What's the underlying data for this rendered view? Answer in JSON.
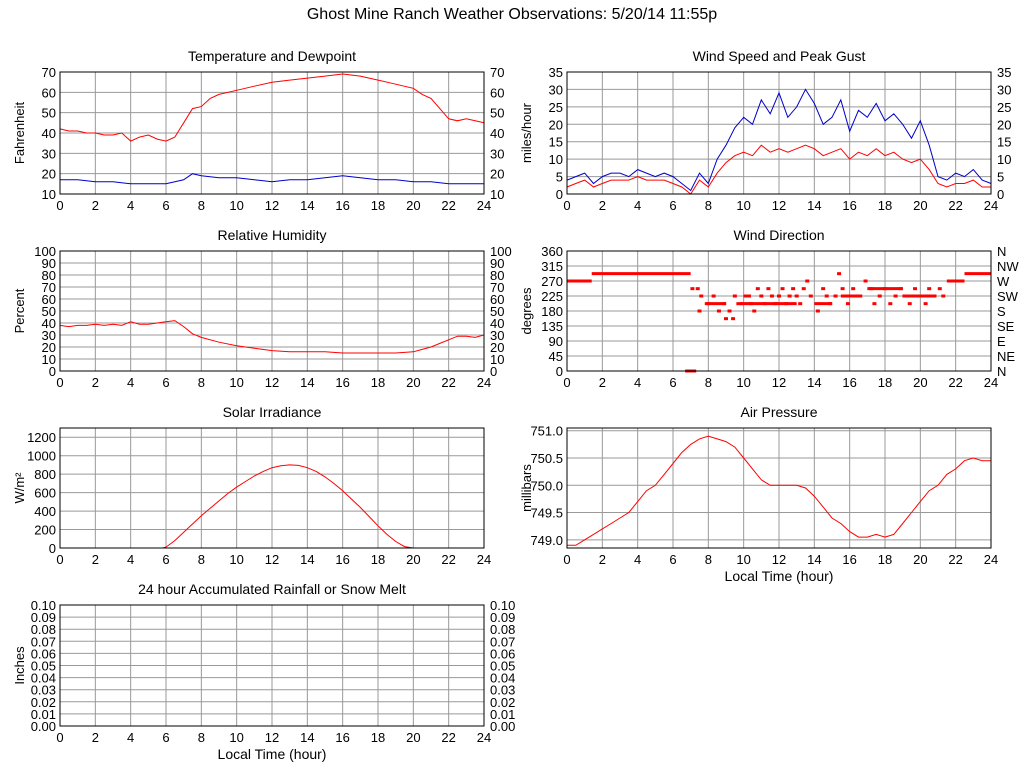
{
  "page": {
    "title": "Ghost Mine Ranch Weather Observations: 5/20/14 11:55p"
  },
  "colors": {
    "red": "#ff0000",
    "blue": "#0000cc",
    "grid": "#999999",
    "frame": "#000000"
  },
  "chart_data": [
    {
      "id": "temp",
      "type": "line",
      "title": "Temperature and Dewpoint",
      "ylabel": "Fahrenheit",
      "xlabel": "",
      "xlim": [
        0,
        24
      ],
      "ylim": [
        10,
        70
      ],
      "yticks": [
        10,
        20,
        30,
        40,
        50,
        60,
        70
      ],
      "ytick_labels": [
        "10",
        "20",
        "30",
        "40",
        "50",
        "60",
        "70"
      ],
      "right_ticks": [
        "10",
        "20",
        "30",
        "40",
        "50",
        "60",
        "70"
      ],
      "xticks": [
        0,
        2,
        4,
        6,
        8,
        10,
        12,
        14,
        16,
        18,
        20,
        22,
        24
      ],
      "grid": true,
      "series": [
        {
          "color": "#ff0000",
          "x": [
            0,
            0.5,
            1,
            1.5,
            2,
            2.5,
            3,
            3.5,
            4,
            4.5,
            5,
            5.5,
            6,
            6.5,
            7,
            7.5,
            8,
            8.5,
            9,
            10,
            11,
            12,
            13,
            14,
            15,
            16,
            17,
            18,
            19,
            20,
            20.5,
            21,
            21.5,
            22,
            22.5,
            23,
            23.5,
            24
          ],
          "y": [
            42,
            41,
            41,
            40,
            40,
            39,
            39,
            40,
            36,
            38,
            39,
            37,
            36,
            38,
            45,
            52,
            53,
            57,
            59,
            61,
            63,
            65,
            66,
            67,
            68,
            69,
            68,
            66,
            64,
            62,
            59,
            57,
            52,
            47,
            46,
            47,
            46,
            45
          ]
        },
        {
          "color": "#0000cc",
          "x": [
            0,
            1,
            2,
            3,
            4,
            5,
            6,
            7,
            7.5,
            8,
            9,
            10,
            11,
            12,
            13,
            14,
            15,
            16,
            17,
            18,
            19,
            20,
            21,
            22,
            23,
            24
          ],
          "y": [
            17,
            17,
            16,
            16,
            15,
            15,
            15,
            17,
            20,
            19,
            18,
            18,
            17,
            16,
            17,
            17,
            18,
            19,
            18,
            17,
            17,
            16,
            16,
            15,
            15,
            15
          ]
        }
      ]
    },
    {
      "id": "wind",
      "type": "line",
      "title": "Wind Speed and Peak Gust",
      "ylabel": "miles/hour",
      "xlabel": "",
      "xlim": [
        0,
        24
      ],
      "ylim": [
        0,
        35
      ],
      "yticks": [
        0,
        5,
        10,
        15,
        20,
        25,
        30,
        35
      ],
      "ytick_labels": [
        "0",
        "5",
        "10",
        "15",
        "20",
        "25",
        "30",
        "35"
      ],
      "right_ticks": [
        "0",
        "5",
        "10",
        "15",
        "20",
        "25",
        "30",
        "35"
      ],
      "xticks": [
        0,
        2,
        4,
        6,
        8,
        10,
        12,
        14,
        16,
        18,
        20,
        22,
        24
      ],
      "grid": true,
      "series": [
        {
          "color": "#0000cc",
          "x": [
            0,
            0.5,
            1,
            1.5,
            2,
            2.5,
            3,
            3.5,
            4,
            4.5,
            5,
            5.5,
            6,
            6.5,
            7,
            7.5,
            8,
            8.5,
            9,
            9.5,
            10,
            10.5,
            11,
            11.5,
            12,
            12.5,
            13,
            13.5,
            14,
            14.5,
            15,
            15.5,
            16,
            16.5,
            17,
            17.5,
            18,
            18.5,
            19,
            19.5,
            20,
            20.5,
            21,
            21.5,
            22,
            22.5,
            23,
            23.5,
            24
          ],
          "y": [
            4,
            5,
            6,
            3,
            5,
            6,
            6,
            5,
            7,
            6,
            5,
            6,
            5,
            3,
            1,
            6,
            3,
            10,
            14,
            19,
            22,
            20,
            27,
            23,
            29,
            22,
            25,
            30,
            26,
            20,
            22,
            27,
            18,
            24,
            22,
            26,
            21,
            23,
            20,
            16,
            21,
            14,
            5,
            4,
            6,
            5,
            7,
            4,
            3
          ]
        },
        {
          "color": "#ff0000",
          "x": [
            0,
            0.5,
            1,
            1.5,
            2,
            2.5,
            3,
            3.5,
            4,
            4.5,
            5,
            5.5,
            6,
            6.5,
            7,
            7.5,
            8,
            8.5,
            9,
            9.5,
            10,
            10.5,
            11,
            11.5,
            12,
            12.5,
            13,
            13.5,
            14,
            14.5,
            15,
            15.5,
            16,
            16.5,
            17,
            17.5,
            18,
            18.5,
            19,
            19.5,
            20,
            20.5,
            21,
            21.5,
            22,
            22.5,
            23,
            23.5,
            24
          ],
          "y": [
            2,
            3,
            4,
            2,
            3,
            4,
            4,
            4,
            5,
            4,
            4,
            4,
            3,
            2,
            0,
            4,
            2,
            6,
            9,
            11,
            12,
            11,
            14,
            12,
            13,
            12,
            13,
            14,
            13,
            11,
            12,
            13,
            10,
            12,
            11,
            13,
            11,
            12,
            10,
            9,
            10,
            7,
            3,
            2,
            3,
            3,
            4,
            2,
            2
          ]
        }
      ]
    },
    {
      "id": "rh",
      "type": "line",
      "title": "Relative Humidity",
      "ylabel": "Percent",
      "xlabel": "",
      "xlim": [
        0,
        24
      ],
      "ylim": [
        0,
        100
      ],
      "yticks": [
        0,
        10,
        20,
        30,
        40,
        50,
        60,
        70,
        80,
        90,
        100
      ],
      "ytick_labels": [
        "0",
        "10",
        "20",
        "30",
        "40",
        "50",
        "60",
        "70",
        "80",
        "90",
        "100"
      ],
      "right_ticks": [
        "0",
        "10",
        "20",
        "30",
        "40",
        "50",
        "60",
        "70",
        "80",
        "90",
        "100"
      ],
      "xticks": [
        0,
        2,
        4,
        6,
        8,
        10,
        12,
        14,
        16,
        18,
        20,
        22,
        24
      ],
      "grid": true,
      "series": [
        {
          "color": "#ff0000",
          "x": [
            0,
            0.5,
            1,
            1.5,
            2,
            2.5,
            3,
            3.5,
            4,
            4.5,
            5,
            5.5,
            6,
            6.5,
            7,
            7.5,
            8,
            9,
            10,
            11,
            12,
            13,
            14,
            15,
            16,
            17,
            18,
            19,
            20,
            20.5,
            21,
            21.5,
            22,
            22.5,
            23,
            23.5,
            24
          ],
          "y": [
            38,
            37,
            38,
            38,
            39,
            38,
            39,
            38,
            41,
            39,
            39,
            40,
            41,
            42,
            37,
            31,
            28,
            24,
            21,
            19,
            17,
            16,
            16,
            16,
            15,
            15,
            15,
            15,
            16,
            18,
            20,
            23,
            26,
            29,
            29,
            28,
            30
          ]
        }
      ]
    },
    {
      "id": "winddir",
      "type": "scatter",
      "title": "Wind Direction",
      "ylabel": "degrees",
      "xlabel": "",
      "xlim": [
        0,
        24
      ],
      "ylim": [
        0,
        360
      ],
      "yticks": [
        0,
        45,
        90,
        135,
        180,
        225,
        270,
        315,
        360
      ],
      "ytick_labels": [
        "0",
        "45",
        "90",
        "135",
        "180",
        "225",
        "270",
        "315",
        "360"
      ],
      "right_ticks": [
        "N",
        "NE",
        "E",
        "SE",
        "S",
        "SW",
        "W",
        "NW",
        "N"
      ],
      "xticks": [
        0,
        2,
        4,
        6,
        8,
        10,
        12,
        14,
        16,
        18,
        20,
        22,
        24
      ],
      "grid": true,
      "segments": [
        {
          "x0": 0,
          "x1": 1.4,
          "y": 270
        },
        {
          "x0": 1.4,
          "x1": 7.0,
          "y": 292
        },
        {
          "x0": 7.8,
          "x1": 9.0,
          "y": 202
        },
        {
          "x0": 9.8,
          "x1": 13.0,
          "y": 202
        },
        {
          "x0": 14.0,
          "x1": 15.0,
          "y": 202
        },
        {
          "x0": 15.5,
          "x1": 16.5,
          "y": 225
        },
        {
          "x0": 17.0,
          "x1": 19.0,
          "y": 247
        },
        {
          "x0": 19.2,
          "x1": 20.8,
          "y": 225
        },
        {
          "x0": 21.5,
          "x1": 22.5,
          "y": 270
        },
        {
          "x0": 22.5,
          "x1": 24.0,
          "y": 292
        }
      ],
      "points": {
        "x": [
          6.8,
          7.0,
          7.2,
          7.1,
          7.4,
          7.6,
          7.5,
          8.0,
          8.3,
          8.6,
          8.9,
          9.0,
          9.2,
          9.4,
          9.5,
          9.7,
          9.9,
          10.1,
          10.3,
          10.4,
          10.6,
          10.8,
          11.0,
          11.2,
          11.4,
          11.6,
          11.8,
          12.0,
          12.2,
          12.4,
          12.6,
          12.8,
          13.0,
          13.2,
          13.4,
          13.6,
          13.8,
          14.2,
          14.5,
          14.7,
          14.9,
          15.2,
          15.4,
          15.6,
          15.9,
          16.2,
          16.6,
          16.9,
          17.2,
          17.4,
          17.7,
          18.0,
          18.3,
          18.6,
          18.9,
          19.1,
          19.4,
          19.7,
          20.0,
          20.3,
          20.5,
          20.8,
          21.1,
          21.3
        ],
        "y": [
          0,
          0,
          0,
          247,
          247,
          225,
          180,
          202,
          225,
          180,
          202,
          157,
          180,
          157,
          225,
          202,
          202,
          225,
          225,
          202,
          180,
          247,
          225,
          202,
          247,
          225,
          202,
          225,
          247,
          202,
          225,
          247,
          225,
          202,
          247,
          270,
          225,
          180,
          247,
          225,
          202,
          225,
          292,
          247,
          202,
          247,
          225,
          270,
          247,
          202,
          225,
          247,
          202,
          225,
          247,
          225,
          202,
          247,
          225,
          202,
          247,
          225,
          247,
          225
        ]
      }
    },
    {
      "id": "solar",
      "type": "line",
      "title": "Solar Irradiance",
      "ylabel": "W/m²",
      "xlabel": "",
      "xlim": [
        0,
        24
      ],
      "ylim": [
        0,
        1300
      ],
      "yticks": [
        0,
        200,
        400,
        600,
        800,
        1000,
        1200
      ],
      "ytick_labels": [
        "0",
        "200",
        "400",
        "600",
        "800",
        "1000",
        "1200"
      ],
      "right_ticks": [],
      "xticks": [
        0,
        2,
        4,
        6,
        8,
        10,
        12,
        14,
        16,
        18,
        20,
        22,
        24
      ],
      "grid": true,
      "series": [
        {
          "color": "#ff0000",
          "x": [
            0,
            5.8,
            6,
            6.5,
            7,
            7.5,
            8,
            8.5,
            9,
            9.5,
            10,
            10.5,
            11,
            11.5,
            12,
            12.5,
            13,
            13.5,
            14,
            14.5,
            15,
            15.5,
            16,
            16.5,
            17,
            17.5,
            18,
            18.5,
            19,
            19.5,
            20,
            24
          ],
          "y": [
            0,
            0,
            10,
            80,
            170,
            260,
            350,
            430,
            510,
            590,
            660,
            720,
            780,
            830,
            870,
            890,
            900,
            895,
            870,
            830,
            770,
            700,
            620,
            530,
            440,
            340,
            240,
            150,
            70,
            15,
            0,
            0
          ]
        }
      ]
    },
    {
      "id": "pressure",
      "type": "line",
      "title": "Air Pressure",
      "ylabel": "millibars",
      "xlabel": "Local Time (hour)",
      "xlim": [
        0,
        24
      ],
      "ylim": [
        748.85,
        751.05
      ],
      "yticks": [
        749.0,
        749.5,
        750.0,
        750.5,
        751.0
      ],
      "ytick_labels": [
        "749.0",
        "749.5",
        "750.0",
        "750.5",
        "751.0"
      ],
      "right_ticks": [],
      "xticks": [
        0,
        2,
        4,
        6,
        8,
        10,
        12,
        14,
        16,
        18,
        20,
        22,
        24
      ],
      "grid": true,
      "series": [
        {
          "color": "#ff0000",
          "x": [
            0,
            0.5,
            1,
            1.5,
            2,
            2.5,
            3,
            3.5,
            4,
            4.5,
            5,
            5.5,
            6,
            6.5,
            7,
            7.5,
            8,
            8.5,
            9,
            9.5,
            10,
            10.5,
            11,
            11.5,
            12,
            12.5,
            13,
            13.5,
            14,
            14.5,
            15,
            15.5,
            16,
            16.5,
            17,
            17.5,
            18,
            18.5,
            19,
            19.5,
            20,
            20.5,
            21,
            21.5,
            22,
            22.5,
            23,
            23.5,
            24
          ],
          "y": [
            748.9,
            748.9,
            749.0,
            749.1,
            749.2,
            749.3,
            749.4,
            749.5,
            749.7,
            749.9,
            750.0,
            750.2,
            750.4,
            750.6,
            750.75,
            750.85,
            750.9,
            750.85,
            750.8,
            750.7,
            750.5,
            750.3,
            750.1,
            750.0,
            750.0,
            750.0,
            750.0,
            749.95,
            749.8,
            749.6,
            749.4,
            749.3,
            749.15,
            749.05,
            749.05,
            749.1,
            749.05,
            749.1,
            749.3,
            749.5,
            749.7,
            749.9,
            750.0,
            750.2,
            750.3,
            750.45,
            750.5,
            750.45,
            750.45
          ]
        }
      ]
    },
    {
      "id": "rain",
      "type": "line",
      "title": "24 hour Accumulated Rainfall or Snow Melt",
      "ylabel": "Inches",
      "xlabel": "Local Time (hour)",
      "xlim": [
        0,
        24
      ],
      "ylim": [
        0,
        0.1
      ],
      "yticks": [
        0,
        0.01,
        0.02,
        0.03,
        0.04,
        0.05,
        0.06,
        0.07,
        0.08,
        0.09,
        0.1
      ],
      "ytick_labels": [
        "0.00",
        "0.01",
        "0.02",
        "0.03",
        "0.04",
        "0.05",
        "0.06",
        "0.07",
        "0.08",
        "0.09",
        "0.10"
      ],
      "right_ticks": [
        "0.00",
        "0.01",
        "0.02",
        "0.03",
        "0.04",
        "0.05",
        "0.06",
        "0.07",
        "0.08",
        "0.09",
        "0.10"
      ],
      "xticks": [
        0,
        2,
        4,
        6,
        8,
        10,
        12,
        14,
        16,
        18,
        20,
        22,
        24
      ],
      "grid": true,
      "series": [
        {
          "color": "#ff0000",
          "x": [
            0,
            24
          ],
          "y": [
            0,
            0
          ]
        }
      ]
    }
  ]
}
